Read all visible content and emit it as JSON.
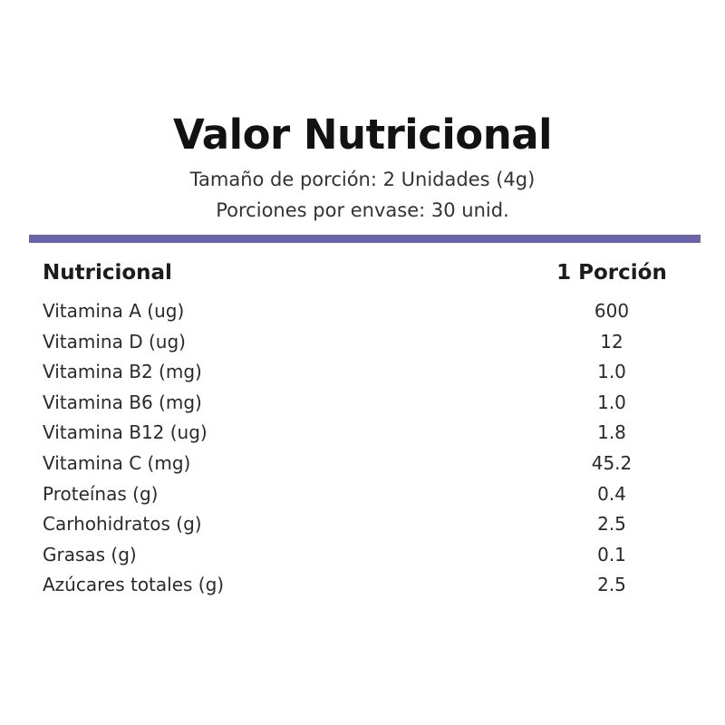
{
  "header": {
    "title": "Valor Nutricional",
    "serving_size": "Tamaño de porción: 2 Unidades (4g)",
    "servings_per_container": "Porciones por envase: 30 unid.",
    "divider_color": "#6b63a8"
  },
  "table": {
    "col_name": "Nutricional",
    "col_value": "1 Porción",
    "rows": [
      {
        "name": "Vitamina A (ug)",
        "value": "600"
      },
      {
        "name": "Vitamina D (ug)",
        "value": "12"
      },
      {
        "name": "Vitamina B2 (mg)",
        "value": "1.0"
      },
      {
        "name": "Vitamina B6 (mg)",
        "value": "1.0"
      },
      {
        "name": "Vitamina B12 (ug)",
        "value": "1.8"
      },
      {
        "name": "Vitamina C (mg)",
        "value": "45.2"
      },
      {
        "name": "Proteínas (g)",
        "value": "0.4"
      },
      {
        "name": "Carhohidratos (g)",
        "value": "2.5"
      },
      {
        "name": "Grasas (g)",
        "value": "0.1"
      },
      {
        "name": "Azúcares totales (g)",
        "value": "2.5"
      }
    ]
  }
}
